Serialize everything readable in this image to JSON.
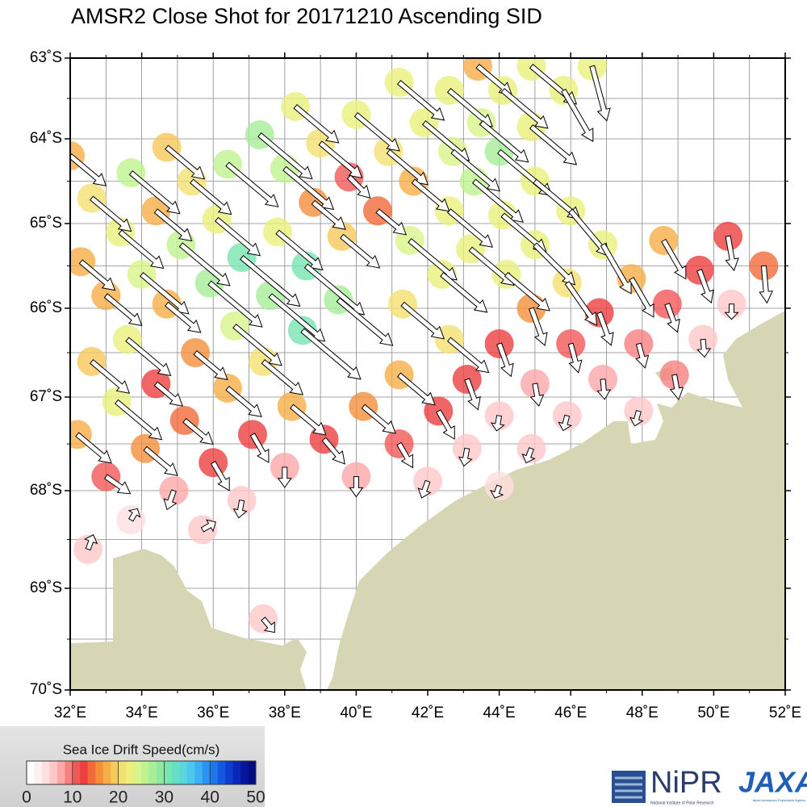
{
  "chart_data": {
    "type": "drift-map",
    "title": "AMSR2 Close Shot for 20171210 Ascending SID",
    "xlim": [
      32,
      52
    ],
    "ylim": [
      -70,
      -63
    ],
    "xticks": [
      {
        "value": 32,
        "label": "32˚E"
      },
      {
        "value": 34,
        "label": "34˚E"
      },
      {
        "value": 36,
        "label": "36˚E"
      },
      {
        "value": 38,
        "label": "38˚E"
      },
      {
        "value": 40,
        "label": "40˚E"
      },
      {
        "value": 42,
        "label": "42˚E"
      },
      {
        "value": 44,
        "label": "44˚E"
      },
      {
        "value": 46,
        "label": "46˚E"
      },
      {
        "value": 48,
        "label": "48˚E"
      },
      {
        "value": 50,
        "label": "50˚E"
      },
      {
        "value": 52,
        "label": "52˚E"
      }
    ],
    "yticks": [
      {
        "value": -63,
        "label": "63˚S"
      },
      {
        "value": -64,
        "label": "64˚S"
      },
      {
        "value": -65,
        "label": "65˚S"
      },
      {
        "value": -66,
        "label": "66˚S"
      },
      {
        "value": -67,
        "label": "67˚S"
      },
      {
        "value": -68,
        "label": "68˚S"
      },
      {
        "value": -69,
        "label": "69˚S"
      },
      {
        "value": -70,
        "label": "70˚S"
      }
    ],
    "grid": true,
    "land_color": "#d6d6b4",
    "vectors": {
      "lon": [
        32.0,
        32.6,
        32.3,
        33.0,
        32.6,
        32.2,
        33.0,
        32.5,
        33.7,
        33.4,
        34.0,
        33.6,
        33.3,
        34.1,
        33.7,
        34.7,
        34.4,
        35.1,
        34.7,
        34.4,
        35.2,
        34.9,
        35.4,
        35.9,
        35.5,
        36.4,
        36.0,
        35.7,
        36.4,
        36.1,
        36.6,
        36.8,
        37.3,
        36.8,
        37.4,
        37.1,
        37.4,
        38.3,
        38.0,
        37.8,
        37.6,
        38.5,
        38.2,
        38.0,
        39.0,
        38.8,
        38.6,
        39.6,
        39.5,
        39.1,
        39.8,
        40.0,
        40.6,
        40.2,
        40.0,
        41.2,
        40.9,
        41.6,
        41.5,
        41.3,
        41.2,
        41.2,
        42.0,
        41.9,
        42.7,
        42.6,
        42.4,
        42.6,
        42.3,
        42.6,
        43.4,
        43.3,
        43.2,
        43.1,
        43.1,
        44.0,
        44.1,
        43.5,
        44.0,
        44.0,
        44.0,
        44.2,
        44.1,
        45.0,
        44.9,
        44.9,
        45.0,
        44.9,
        45.0,
        44.9,
        45.8,
        46.0,
        45.9,
        46.0,
        45.9,
        46.6,
        46.9,
        46.8,
        46.9,
        47.7,
        47.9,
        47.9,
        48.6,
        48.7,
        48.9,
        49.6,
        49.7,
        50.4,
        50.5,
        51.4
      ],
      "lat": [
        -64.2,
        -64.7,
        -65.45,
        -65.85,
        -66.6,
        -67.4,
        -67.85,
        -68.6,
        -64.4,
        -65.1,
        -65.6,
        -66.35,
        -67.05,
        -67.55,
        -68.3,
        -64.1,
        -64.85,
        -65.25,
        -65.95,
        -66.85,
        -67.25,
        -68.0,
        -64.5,
        -65.7,
        -66.5,
        -66.9,
        -67.7,
        -68.4,
        -64.3,
        -64.95,
        -66.2,
        -68.1,
        -63.95,
        -65.4,
        -66.6,
        -67.4,
        -69.3,
        -63.6,
        -64.35,
        -65.1,
        -65.85,
        -66.25,
        -67.1,
        -67.75,
        -64.05,
        -64.75,
        -65.5,
        -65.15,
        -65.9,
        -67.45,
        -64.45,
        -63.7,
        -64.85,
        -67.1,
        -67.85,
        -63.3,
        -64.15,
        -64.5,
        -65.2,
        -65.95,
        -66.75,
        -67.5,
        -67.9,
        -63.8,
        -64.15,
        -64.85,
        -65.6,
        -66.35,
        -67.15,
        -63.4,
        -63.1,
        -64.5,
        -65.3,
        -66.8,
        -67.55,
        -64.15,
        -63.4,
        -63.8,
        -66.4,
        -67.2,
        -67.95,
        -65.6,
        -64.9,
        -64.5,
        -63.85,
        -63.1,
        -65.25,
        -66.0,
        -66.85,
        -67.55,
        -63.4,
        -64.85,
        -65.7,
        -66.4,
        -67.2,
        -63.1,
        -65.25,
        -66.05,
        -66.8,
        -65.65,
        -66.4,
        -67.15,
        -65.2,
        -65.95,
        -66.75,
        -65.55,
        -66.35,
        -65.15,
        -65.95,
        -65.5
      ],
      "speed": [
        18,
        20,
        17,
        18,
        19,
        17,
        11,
        5,
        25,
        22,
        24,
        22,
        23,
        16,
        4,
        19,
        18,
        25,
        17,
        13,
        14,
        7,
        20,
        27,
        16,
        17,
        12,
        5,
        26,
        22,
        24,
        6,
        27,
        30,
        20,
        12,
        6,
        22,
        25,
        23,
        28,
        30,
        17,
        7,
        21,
        16,
        30,
        19,
        28,
        12,
        11,
        22,
        14,
        16,
        7,
        23,
        20,
        18,
        24,
        21,
        18,
        10,
        6,
        23,
        24,
        22,
        23,
        20,
        12,
        22,
        17,
        25,
        22,
        12,
        6,
        27,
        23,
        24,
        13,
        5,
        4,
        22,
        22,
        23,
        23,
        23,
        22,
        15,
        8,
        5,
        23,
        23,
        20,
        11,
        5,
        22,
        22,
        13,
        7,
        17,
        9,
        5,
        17,
        11,
        9,
        13,
        6,
        13,
        5,
        14
      ],
      "bearing": [
        130,
        130,
        130,
        130,
        130,
        130,
        125,
        20,
        130,
        130,
        130,
        130,
        130,
        130,
        30,
        130,
        130,
        130,
        130,
        130,
        130,
        200,
        130,
        130,
        130,
        130,
        150,
        60,
        130,
        130,
        130,
        190,
        130,
        130,
        130,
        150,
        140,
        130,
        130,
        130,
        130,
        130,
        130,
        180,
        130,
        130,
        130,
        130,
        130,
        140,
        135,
        130,
        130,
        130,
        180,
        130,
        130,
        130,
        130,
        130,
        130,
        150,
        200,
        130,
        130,
        130,
        130,
        130,
        150,
        130,
        130,
        130,
        130,
        160,
        190,
        130,
        130,
        130,
        160,
        190,
        200,
        130,
        130,
        130,
        130,
        130,
        135,
        160,
        170,
        200,
        150,
        140,
        145,
        165,
        195,
        165,
        150,
        160,
        175,
        150,
        165,
        195,
        150,
        160,
        170,
        160,
        175,
        170,
        180,
        175
      ]
    },
    "colorbar": {
      "title": "Sea Ice Drift Speed(cm/s)",
      "range": [
        0,
        50
      ],
      "ticks": [
        0,
        10,
        20,
        30,
        40,
        50
      ],
      "colors": [
        "#ffffff",
        "#fff0f0",
        "#ffdede",
        "#ffc8c8",
        "#fca8a8",
        "#f88080",
        "#f25858",
        "#ec4040",
        "#f06a3a",
        "#f58e3c",
        "#f7ae46",
        "#f7c85a",
        "#f4e070",
        "#eaf07a",
        "#d8f48a",
        "#c0f290",
        "#a6ee98",
        "#8ee8a0",
        "#78e4b0",
        "#66dec4",
        "#5ad6dc",
        "#4cc8ee",
        "#3cb0f2",
        "#2c94f0",
        "#1e76ea",
        "#1458e0",
        "#0c3cd0",
        "#0826b8",
        "#06169a",
        "#040a80"
      ]
    },
    "logos": {
      "nipr": "NiPR",
      "nipr_full": "National Institute of Polar Research",
      "jaxa": "JAXA",
      "jaxa_full": "Japan Aerospace Exploration Agency"
    }
  }
}
